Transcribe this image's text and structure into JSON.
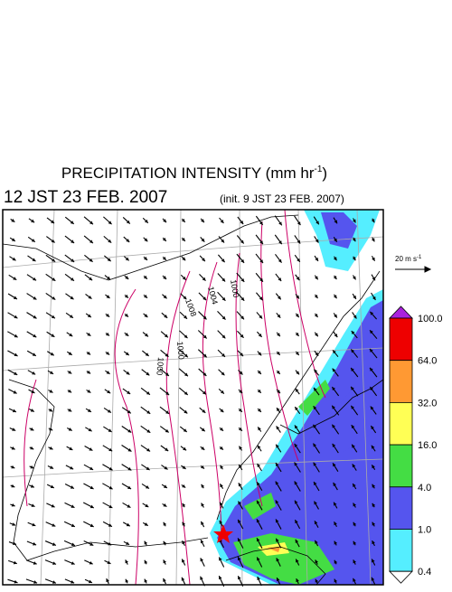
{
  "header": {
    "title": "PRECIPITATION INTENSITY (mm hr",
    "title_sup": "-1",
    "title_end": ")",
    "valid_time": "12 JST 23 FEB. 2007",
    "init_time": "(init. 9 JST 23 FEB. 2007)"
  },
  "wind_reference": {
    "label": "20 m s",
    "label_sup": "-1"
  },
  "contour_labels": [
    "1008",
    "1004",
    "1000",
    "1000",
    "1000"
  ],
  "colorbar": {
    "labels": [
      "100.0",
      "64.0",
      "32.0",
      "16.0",
      "4.0",
      "1.0",
      "0.4"
    ],
    "colors": [
      "#ee0000",
      "#ff9933",
      "#ffff55",
      "#44dd44",
      "#5555ee",
      "#55eeff"
    ],
    "over_color": "#aa22dd",
    "under_color": "#ffffff"
  }
}
